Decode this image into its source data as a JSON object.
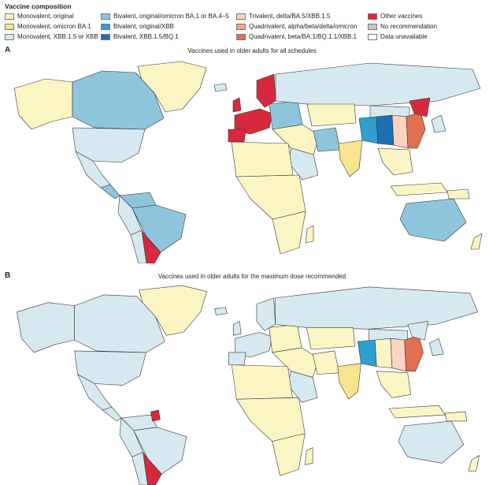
{
  "legend": {
    "title": "Vaccine composition",
    "items": [
      {
        "key": "mono_orig",
        "label": "Monovalent, original",
        "color": "#fbf5c4"
      },
      {
        "key": "mono_ba1",
        "label": "Monovalent, omicron BA.1",
        "color": "#f6e58e"
      },
      {
        "key": "mono_xbb",
        "label": "Monovalent, XBB.1.5 or XBB",
        "color": "#d6e9f1"
      },
      {
        "key": "bi_ba1",
        "label": "Bivalent, original/omicron BA.1 or BA.4–5",
        "color": "#8fc5dc"
      },
      {
        "key": "bi_xbb",
        "label": "Bivalent, original/XBB",
        "color": "#2f9fd0"
      },
      {
        "key": "bi_bq",
        "label": "Bivalent, XBB.1.5/BQ.1",
        "color": "#1f6fb2"
      },
      {
        "key": "tri",
        "label": "Trivalent, delta/BA.5/XBB.1.5",
        "color": "#f9d4c0"
      },
      {
        "key": "quad1",
        "label": "Quadrivalent, alpha/beta/delta/omicron",
        "color": "#f1a585"
      },
      {
        "key": "quad2",
        "label": "Quadrivalent, beta/BA.1/BQ.1.1/XBB.1",
        "color": "#e07050"
      },
      {
        "key": "other",
        "label": "Other vaccines",
        "color": "#d6293e"
      },
      {
        "key": "norec",
        "label": "No recommendation",
        "color": "#c8c8c8"
      },
      {
        "key": "na",
        "label": "Data unavailable",
        "color": "#ffffff"
      }
    ]
  },
  "panels": [
    {
      "letter": "A",
      "title": "Vaccines used in older adults for all schedules"
    },
    {
      "letter": "B",
      "title": "Vaccines used in older adults for the maximum dose recommended"
    }
  ]
}
